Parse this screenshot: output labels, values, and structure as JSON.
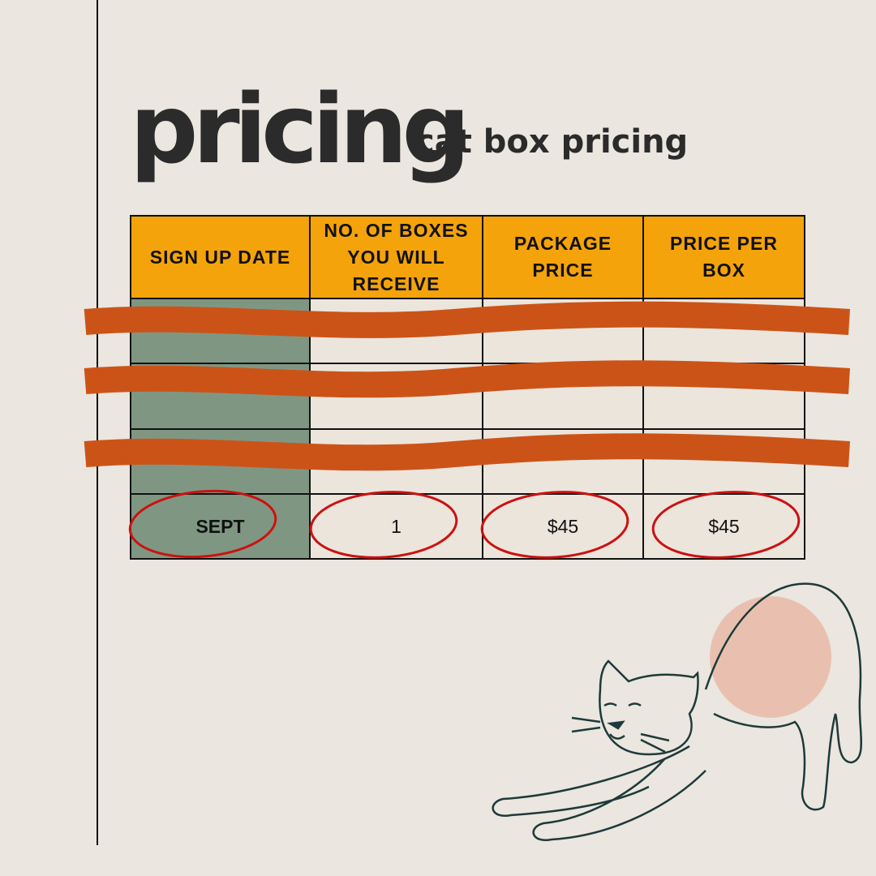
{
  "header": {
    "title": "pricing",
    "subtitle": "cat box pricing"
  },
  "table": {
    "columns": [
      "SIGN UP DATE",
      "NO. OF BOXES YOU WILL RECEIVE",
      "PACKAGE PRICE",
      "PRICE PER BOX"
    ],
    "rows": [
      [
        "SEPT",
        "1",
        "$45",
        "$45"
      ]
    ]
  }
}
